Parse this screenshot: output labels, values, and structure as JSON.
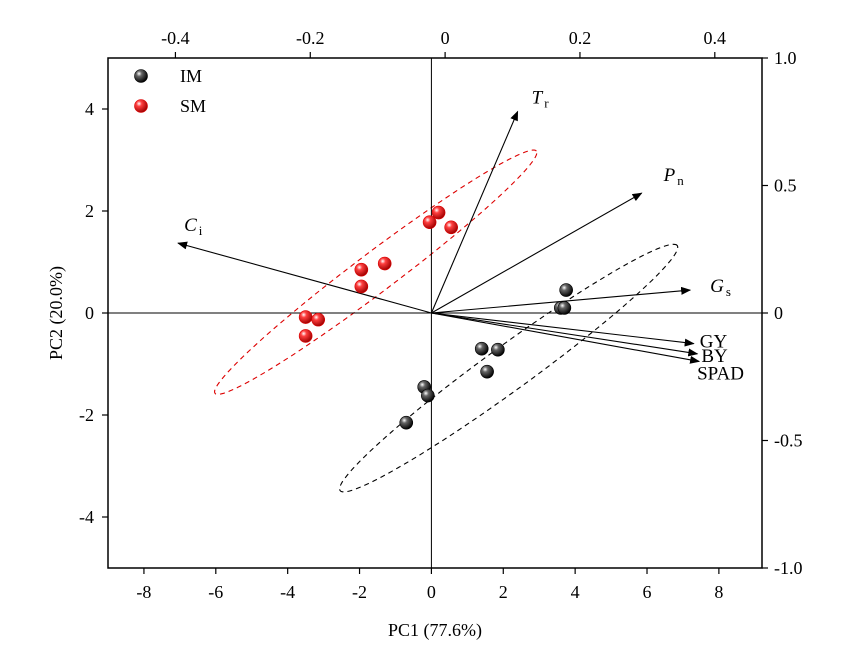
{
  "chart_data": {
    "type": "scatter",
    "subtype": "pca-biplot",
    "xlabel": "PC1 (77.6%)",
    "ylabel": "PC2 (20.0%)",
    "xlim": [
      -9,
      9.2
    ],
    "ylim": [
      -5,
      5
    ],
    "x_ticks": [
      -8,
      -6,
      -4,
      -2,
      0,
      2,
      4,
      6,
      8
    ],
    "y_ticks": [
      -4,
      -2,
      0,
      2,
      4
    ],
    "top_axis": {
      "lim": [
        -0.5,
        0.47
      ],
      "ticks": [
        -0.4,
        -0.2,
        0,
        0.2,
        0.4
      ]
    },
    "right_axis": {
      "lim": [
        -1.0,
        1.0
      ],
      "ticks": [
        1.0,
        0.5,
        0,
        -0.5,
        -1.0
      ]
    },
    "reference_lines": true,
    "legend": {
      "position": "top-left",
      "entries": [
        {
          "label": "IM",
          "color": "#000000"
        },
        {
          "label": "SM",
          "color": "#dd0000"
        }
      ]
    },
    "series": [
      {
        "name": "IM",
        "color": "#000000",
        "points": [
          [
            3.75,
            0.45
          ],
          [
            3.6,
            0.1
          ],
          [
            3.7,
            0.1
          ],
          [
            1.4,
            -0.7
          ],
          [
            1.85,
            -0.72
          ],
          [
            1.55,
            -1.15
          ],
          [
            -0.2,
            -1.45
          ],
          [
            -0.1,
            -1.62
          ],
          [
            -0.7,
            -2.15
          ]
        ]
      },
      {
        "name": "SM",
        "color": "#dd0000",
        "points": [
          [
            0.2,
            1.97
          ],
          [
            -0.05,
            1.78
          ],
          [
            0.55,
            1.68
          ],
          [
            -1.3,
            0.97
          ],
          [
            -1.95,
            0.85
          ],
          [
            -1.95,
            0.52
          ],
          [
            -3.5,
            -0.08
          ],
          [
            -3.15,
            -0.13
          ],
          [
            -3.5,
            -0.45
          ]
        ]
      }
    ],
    "ellipses": [
      {
        "group": "IM",
        "color": "#000000",
        "center": [
          2.15,
          -1.08
        ],
        "semi_major": 5.8,
        "semi_minor": 0.62,
        "angle_deg": 36
      },
      {
        "group": "SM",
        "color": "#dd0000",
        "center": [
          -1.55,
          0.8
        ],
        "semi_major": 5.6,
        "semi_minor": 0.55,
        "angle_deg": 37
      }
    ],
    "loadings": [
      {
        "label": "T",
        "sub": "r",
        "x": 2.4,
        "y": 3.95
      },
      {
        "label": "P",
        "sub": "n",
        "x": 5.85,
        "y": 2.35
      },
      {
        "label": "C",
        "sub": "i",
        "x": -7.05,
        "y": 1.37
      },
      {
        "label": "G",
        "sub": "s",
        "x": 7.2,
        "y": 0.45
      },
      {
        "label": "GY",
        "sub": "",
        "x": 7.3,
        "y": -0.6
      },
      {
        "label": "BY",
        "sub": "",
        "x": 7.4,
        "y": -0.8
      },
      {
        "label": "SPAD",
        "sub": "",
        "x": 7.45,
        "y": -0.95
      }
    ]
  }
}
